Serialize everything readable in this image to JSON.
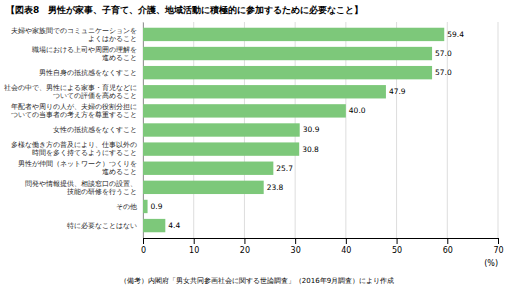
{
  "chart_data": {
    "type": "bar",
    "orientation": "horizontal",
    "title": "【図表8　男性が家事、子育て、介護、地域活動に積極的に参加するために必要なこと】",
    "categories": [
      "夫婦や家族間でのコミュニケーションを\nよくはかること",
      "職場における上司や周囲の理解を\n進めること",
      "男性自身の抵抗感をなくすこと",
      "社会の中で、男性による家事・育児などに\nついての評価を高めること",
      "年配者や周りの人が、夫婦の役割分担に\nついての当事者の考え方を尊重すること",
      "女性の抵抗感をなくすこと",
      "多様な働き方の普及により、仕事以外の\n時間を多く持てるようにすること",
      "男性が仲間（ネットワーク）つくりを\n進めること",
      "問発や情報提供、相談窓口の設置、\n技能の研修を行うこと",
      "その他",
      "特に必要なことはない"
    ],
    "values": [
      59.4,
      57.0,
      57.0,
      47.9,
      40.0,
      30.9,
      30.8,
      25.7,
      23.8,
      0.9,
      4.4
    ],
    "value_labels": [
      "59.4",
      "57.0",
      "57.0",
      "47.9",
      "40.0",
      "30.9",
      "30.8",
      "25.7",
      "23.8",
      "0.9",
      "4.4"
    ],
    "data_labels": true,
    "color": "#7DC87A",
    "xlim": [
      0,
      70
    ],
    "xticks": [
      0,
      10,
      20,
      30,
      40,
      50,
      60,
      70
    ],
    "xlabel": "(%)",
    "footnote": "（備考）内閣府「男女共同参画社会に関する世論調査」（2016年9月調査）により作成",
    "grid": true
  }
}
